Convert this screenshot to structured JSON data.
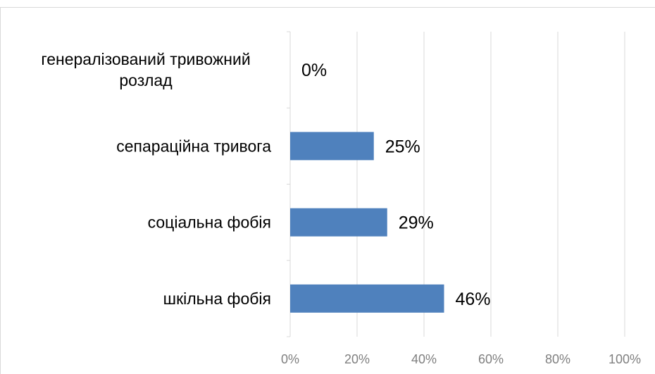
{
  "chart_data": {
    "type": "bar",
    "orientation": "horizontal",
    "categories": [
      "генералізований тривожний розлад",
      "сепараційна тривога",
      "соціальна фобія",
      "шкільна фобія"
    ],
    "category_lines": [
      [
        "генералізований тривожний",
        "розлад"
      ],
      [
        "сепараційна тривога"
      ],
      [
        "соціальна фобія"
      ],
      [
        "шкільна фобія"
      ]
    ],
    "values": [
      0,
      25,
      29,
      46
    ],
    "data_labels": [
      "0%",
      "25%",
      "29%",
      "46%"
    ],
    "x_ticks": [
      0,
      20,
      40,
      60,
      80,
      100
    ],
    "x_tick_labels": [
      "0%",
      "20%",
      "40%",
      "60%",
      "80%",
      "100%"
    ],
    "xlim": [
      0,
      100
    ],
    "grid": "vertical",
    "legend": "none",
    "title": "",
    "xlabel": "",
    "ylabel": "",
    "colors": {
      "bar": "#4f81bd",
      "gridline": "#d9d9d9",
      "axis_text": "#7f7f7f",
      "label_text": "#000000"
    }
  }
}
